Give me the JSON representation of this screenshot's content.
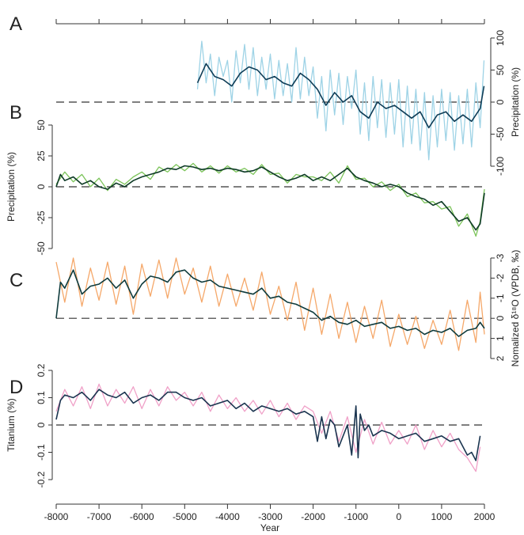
{
  "figure": {
    "xlabel": "Year",
    "x_ticks": [
      "-8000",
      "-7000",
      "-6000",
      "-5000",
      "-4000",
      "-3000",
      "-2000",
      "-1000",
      "0",
      "1000",
      "2000"
    ]
  },
  "chart_data": [
    {
      "panel": "A",
      "type": "line",
      "ylabel": "Precipitation (%)",
      "y_axis_side": "right",
      "xlim": [
        -8000,
        2000
      ],
      "ylim": [
        -100,
        100
      ],
      "y_ticks": [
        "100",
        "50",
        "0",
        "-50",
        "-100"
      ],
      "y_tick_values": [
        100,
        50,
        0,
        -50,
        -100
      ],
      "reference_line": 0,
      "colors": {
        "raw": "#9ed3e6",
        "smooth": "#0f3d57"
      },
      "smoothed": {
        "x": [
          -4700,
          -4500,
          -4300,
          -4100,
          -3900,
          -3700,
          -3500,
          -3300,
          -3100,
          -2900,
          -2700,
          -2500,
          -2300,
          -2100,
          -1900,
          -1700,
          -1500,
          -1300,
          -1100,
          -900,
          -700,
          -500,
          -300,
          -100,
          100,
          300,
          500,
          700,
          900,
          1100,
          1300,
          1500,
          1700,
          1900,
          1990
        ],
        "y": [
          30,
          60,
          40,
          35,
          25,
          45,
          55,
          50,
          35,
          40,
          30,
          25,
          45,
          35,
          20,
          -5,
          15,
          0,
          10,
          -15,
          -25,
          0,
          -10,
          -5,
          -15,
          -25,
          -15,
          -40,
          -20,
          -15,
          -30,
          -20,
          -30,
          -10,
          25
        ]
      },
      "raw": {
        "x": [
          -4700,
          -4600,
          -4500,
          -4400,
          -4300,
          -4200,
          -4100,
          -4000,
          -3900,
          -3800,
          -3700,
          -3600,
          -3500,
          -3400,
          -3300,
          -3200,
          -3100,
          -3000,
          -2900,
          -2800,
          -2700,
          -2600,
          -2500,
          -2400,
          -2300,
          -2200,
          -2100,
          -2000,
          -1900,
          -1800,
          -1700,
          -1600,
          -1500,
          -1400,
          -1300,
          -1200,
          -1100,
          -1000,
          -900,
          -800,
          -700,
          -600,
          -500,
          -400,
          -300,
          -200,
          -100,
          0,
          100,
          200,
          300,
          400,
          500,
          600,
          700,
          800,
          900,
          1000,
          1100,
          1200,
          1300,
          1400,
          1500,
          1600,
          1700,
          1800,
          1900,
          1990
        ],
        "y": [
          20,
          95,
          30,
          75,
          10,
          70,
          40,
          65,
          0,
          80,
          30,
          90,
          20,
          85,
          10,
          70,
          20,
          75,
          5,
          65,
          10,
          60,
          0,
          85,
          5,
          70,
          10,
          55,
          -25,
          40,
          -45,
          50,
          -20,
          45,
          -35,
          40,
          -10,
          50,
          -50,
          30,
          -60,
          40,
          -40,
          35,
          -55,
          30,
          -50,
          35,
          -70,
          25,
          -65,
          20,
          -75,
          15,
          -90,
          10,
          -70,
          20,
          -60,
          15,
          -75,
          10,
          -65,
          20,
          -70,
          30,
          -40,
          65
        ]
      }
    },
    {
      "panel": "B",
      "type": "line",
      "ylabel": "Precipitation (%)",
      "y_axis_side": "left",
      "xlim": [
        -8000,
        2000
      ],
      "ylim": [
        -50,
        50
      ],
      "y_ticks": [
        "50",
        "25",
        "0",
        "-25",
        "-50"
      ],
      "y_tick_values": [
        50,
        25,
        0,
        -25,
        -50
      ],
      "reference_line": 0,
      "colors": {
        "raw": "#7cc45a",
        "smooth": "#0e3b26"
      },
      "smoothed": {
        "x": [
          -8000,
          -7900,
          -7800,
          -7600,
          -7400,
          -7200,
          -7000,
          -6800,
          -6600,
          -6400,
          -6200,
          -6000,
          -5800,
          -5600,
          -5400,
          -5200,
          -5000,
          -4800,
          -4600,
          -4400,
          -4200,
          -4000,
          -3800,
          -3600,
          -3400,
          -3200,
          -3000,
          -2800,
          -2600,
          -2400,
          -2200,
          -2000,
          -1800,
          -1600,
          -1400,
          -1200,
          -1000,
          -800,
          -600,
          -400,
          -200,
          0,
          200,
          400,
          600,
          800,
          1000,
          1200,
          1400,
          1600,
          1800,
          1900,
          2000
        ],
        "y": [
          0,
          10,
          5,
          8,
          2,
          5,
          0,
          -2,
          3,
          0,
          5,
          8,
          10,
          12,
          15,
          14,
          17,
          16,
          14,
          15,
          13,
          15,
          14,
          12,
          13,
          16,
          12,
          8,
          5,
          7,
          10,
          5,
          8,
          5,
          10,
          15,
          8,
          5,
          3,
          0,
          2,
          0,
          -5,
          -8,
          -10,
          -15,
          -12,
          -20,
          -28,
          -25,
          -35,
          -30,
          -5
        ]
      },
      "raw": {
        "x": [
          -8000,
          -7800,
          -7600,
          -7400,
          -7200,
          -7000,
          -6800,
          -6600,
          -6400,
          -6200,
          -6000,
          -5800,
          -5600,
          -5400,
          -5200,
          -5000,
          -4800,
          -4600,
          -4400,
          -4200,
          -4000,
          -3800,
          -3600,
          -3400,
          -3200,
          -3000,
          -2800,
          -2600,
          -2400,
          -2200,
          -2000,
          -1800,
          -1600,
          -1400,
          -1200,
          -1000,
          -800,
          -600,
          -400,
          -200,
          0,
          200,
          400,
          600,
          800,
          1000,
          1200,
          1400,
          1600,
          1800,
          1900,
          2000
        ],
        "y": [
          2,
          12,
          4,
          10,
          0,
          7,
          -3,
          6,
          2,
          8,
          12,
          6,
          16,
          12,
          18,
          13,
          19,
          12,
          17,
          11,
          17,
          12,
          15,
          10,
          18,
          10,
          11,
          3,
          10,
          8,
          8,
          5,
          12,
          3,
          17,
          6,
          7,
          0,
          4,
          -3,
          2,
          -8,
          -5,
          -13,
          -12,
          -18,
          -16,
          -32,
          -22,
          -40,
          -28,
          -2
        ]
      }
    },
    {
      "panel": "C",
      "type": "line",
      "ylabel": "Nomalized δ¹⁸O (VPDB, ‰)",
      "y_axis_side": "right",
      "y_inverted": true,
      "xlim": [
        -8000,
        2000
      ],
      "ylim": [
        2,
        -3
      ],
      "y_ticks": [
        "-3",
        "-2",
        "-1",
        "0",
        "1",
        "2"
      ],
      "y_tick_values": [
        -3,
        -2,
        -1,
        0,
        1,
        2
      ],
      "reference_line": 0,
      "colors": {
        "raw": "#f5a86a",
        "smooth": "#0f3b3c"
      },
      "smoothed": {
        "x": [
          -8000,
          -7900,
          -7800,
          -7600,
          -7400,
          -7200,
          -7000,
          -6800,
          -6600,
          -6400,
          -6200,
          -6000,
          -5800,
          -5600,
          -5400,
          -5200,
          -5000,
          -4800,
          -4600,
          -4400,
          -4200,
          -4000,
          -3800,
          -3600,
          -3400,
          -3200,
          -3000,
          -2800,
          -2600,
          -2400,
          -2200,
          -2000,
          -1800,
          -1600,
          -1400,
          -1200,
          -1000,
          -800,
          -600,
          -400,
          -200,
          0,
          200,
          400,
          600,
          800,
          1000,
          1200,
          1400,
          1600,
          1800,
          1900,
          2000
        ],
        "y": [
          0,
          -1.8,
          -1.5,
          -2.4,
          -1.2,
          -1.6,
          -1.7,
          -2.0,
          -1.5,
          -1.9,
          -1.0,
          -1.7,
          -2.1,
          -2.0,
          -1.8,
          -2.3,
          -2.4,
          -2.0,
          -1.8,
          -1.9,
          -1.6,
          -1.5,
          -1.4,
          -1.3,
          -1.2,
          -1.5,
          -1.0,
          -1.1,
          -0.8,
          -0.7,
          -0.5,
          -0.3,
          0.1,
          -0.1,
          0.2,
          0.3,
          0.1,
          0.4,
          0.3,
          0.2,
          0.5,
          0.4,
          0.6,
          0.5,
          0.8,
          0.6,
          0.7,
          0.5,
          0.9,
          0.6,
          0.5,
          0.2,
          0.5
        ]
      },
      "raw": {
        "x": [
          -8000,
          -7800,
          -7600,
          -7400,
          -7200,
          -7000,
          -6800,
          -6600,
          -6400,
          -6200,
          -6000,
          -5800,
          -5600,
          -5400,
          -5200,
          -5000,
          -4800,
          -4600,
          -4400,
          -4200,
          -4000,
          -3800,
          -3600,
          -3400,
          -3200,
          -3000,
          -2800,
          -2600,
          -2400,
          -2200,
          -2000,
          -1800,
          -1600,
          -1400,
          -1200,
          -1000,
          -800,
          -600,
          -400,
          -200,
          0,
          200,
          400,
          600,
          800,
          1000,
          1200,
          1400,
          1600,
          1800,
          1900,
          2000
        ],
        "y": [
          -2.8,
          -0.8,
          -3.0,
          -0.6,
          -2.5,
          -0.9,
          -2.8,
          -0.7,
          -2.6,
          -0.2,
          -2.7,
          -1.1,
          -2.9,
          -1.0,
          -3.0,
          -1.2,
          -2.5,
          -0.8,
          -2.6,
          -0.6,
          -2.2,
          -0.6,
          -2.0,
          -0.4,
          -2.3,
          -0.2,
          -1.6,
          0.1,
          -1.8,
          0.6,
          -1.5,
          0.8,
          -1.2,
          1.0,
          -0.8,
          1.2,
          -0.6,
          1.0,
          -0.9,
          1.4,
          -0.2,
          1.3,
          -0.1,
          1.5,
          0.1,
          1.3,
          -0.4,
          1.6,
          -0.9,
          1.2,
          -1.3,
          0.8
        ]
      }
    },
    {
      "panel": "D",
      "type": "line",
      "ylabel": "Titanium (%)",
      "y_axis_side": "left",
      "xlim": [
        -8000,
        2000
      ],
      "ylim": [
        -0.2,
        0.2
      ],
      "y_ticks": [
        "0.2",
        "0.1",
        "0",
        "-0.1",
        "-0.2"
      ],
      "y_tick_values": [
        0.2,
        0.1,
        0,
        -0.1,
        -0.2
      ],
      "reference_line": 0,
      "colors": {
        "raw": "#f0a1c8",
        "smooth": "#1b3550"
      },
      "smoothed": {
        "x": [
          -8000,
          -7900,
          -7800,
          -7600,
          -7400,
          -7200,
          -7000,
          -6800,
          -6600,
          -6400,
          -6200,
          -6000,
          -5800,
          -5600,
          -5400,
          -5200,
          -5000,
          -4800,
          -4600,
          -4400,
          -4200,
          -4000,
          -3800,
          -3600,
          -3400,
          -3200,
          -3000,
          -2800,
          -2600,
          -2400,
          -2200,
          -2000,
          -1900,
          -1800,
          -1700,
          -1600,
          -1500,
          -1400,
          -1200,
          -1100,
          -1000,
          -950,
          -900,
          -800,
          -700,
          -600,
          -400,
          -200,
          0,
          200,
          400,
          600,
          800,
          1000,
          1200,
          1400,
          1600,
          1700,
          1800,
          1900
        ],
        "y": [
          0.02,
          0.09,
          0.11,
          0.1,
          0.12,
          0.09,
          0.13,
          0.11,
          0.1,
          0.12,
          0.08,
          0.1,
          0.11,
          0.09,
          0.12,
          0.12,
          0.1,
          0.09,
          0.1,
          0.07,
          0.08,
          0.09,
          0.06,
          0.08,
          0.05,
          0.07,
          0.06,
          0.05,
          0.06,
          0.04,
          0.05,
          0.03,
          -0.06,
          0.03,
          -0.05,
          0.02,
          0.0,
          -0.08,
          0.0,
          -0.11,
          0.07,
          -0.12,
          0.04,
          -0.02,
          0.0,
          -0.04,
          -0.02,
          -0.03,
          -0.05,
          -0.04,
          -0.03,
          -0.06,
          -0.05,
          -0.04,
          -0.06,
          -0.05,
          -0.11,
          -0.1,
          -0.13,
          -0.04
        ]
      },
      "raw": {
        "x": [
          -8000,
          -7800,
          -7600,
          -7400,
          -7200,
          -7000,
          -6800,
          -6600,
          -6400,
          -6200,
          -6000,
          -5800,
          -5600,
          -5400,
          -5200,
          -5000,
          -4800,
          -4600,
          -4400,
          -4200,
          -4000,
          -3800,
          -3600,
          -3400,
          -3200,
          -3000,
          -2800,
          -2600,
          -2400,
          -2200,
          -2000,
          -1800,
          -1600,
          -1400,
          -1200,
          -1000,
          -800,
          -600,
          -400,
          -200,
          0,
          200,
          400,
          600,
          800,
          1000,
          1200,
          1400,
          1600,
          1800,
          1900
        ],
        "y": [
          0.05,
          0.13,
          0.07,
          0.14,
          0.06,
          0.15,
          0.07,
          0.13,
          0.08,
          0.14,
          0.06,
          0.13,
          0.07,
          0.14,
          0.09,
          0.12,
          0.07,
          0.12,
          0.05,
          0.11,
          0.06,
          0.1,
          0.05,
          0.09,
          0.04,
          0.09,
          0.03,
          0.08,
          0.02,
          0.07,
          0.05,
          -0.03,
          0.05,
          -0.06,
          0.03,
          -0.1,
          0.02,
          -0.07,
          0.01,
          -0.07,
          -0.02,
          -0.07,
          0.0,
          -0.09,
          -0.02,
          -0.08,
          -0.03,
          -0.09,
          -0.12,
          -0.17,
          -0.08
        ]
      }
    }
  ]
}
